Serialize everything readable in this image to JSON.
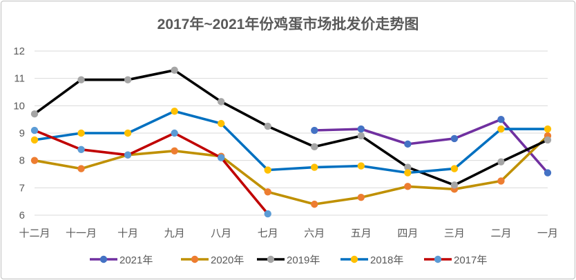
{
  "chart_data": {
    "type": "line",
    "title": "2017年~2021年份鸡蛋市场批发价走势图",
    "xlabel": "",
    "ylabel": "",
    "categories": [
      "十二月",
      "十一月",
      "十月",
      "九月",
      "八月",
      "七月",
      "六月",
      "五月",
      "四月",
      "三月",
      "二月",
      "一月"
    ],
    "ylim": [
      6,
      12
    ],
    "yticks": [
      6,
      7,
      8,
      9,
      10,
      11,
      12
    ],
    "grid": "horizontal",
    "legend": "bottom",
    "series": [
      {
        "name": "2021年",
        "line_color": "#7030a0",
        "marker_color": "#4472c4",
        "values": [
          null,
          null,
          null,
          null,
          null,
          null,
          9.1,
          9.15,
          8.6,
          8.8,
          9.5,
          7.55
        ]
      },
      {
        "name": "2020年",
        "line_color": "#bf9000",
        "marker_color": "#ed7d31",
        "values": [
          8.0,
          7.7,
          8.2,
          8.35,
          8.15,
          6.85,
          6.4,
          6.65,
          7.05,
          6.95,
          7.25,
          8.9
        ]
      },
      {
        "name": "2019年",
        "line_color": "#000000",
        "marker_color": "#a5a5a5",
        "values": [
          9.7,
          10.95,
          10.95,
          11.3,
          10.15,
          9.25,
          8.5,
          8.9,
          7.75,
          7.1,
          7.95,
          8.75
        ]
      },
      {
        "name": "2018年",
        "line_color": "#0070c0",
        "marker_color": "#ffc000",
        "values": [
          8.75,
          9.0,
          9.0,
          9.8,
          9.35,
          7.65,
          7.75,
          7.8,
          7.55,
          7.7,
          9.15,
          9.15
        ]
      },
      {
        "name": "2017年",
        "line_color": "#c00000",
        "marker_color": "#5b9bd5",
        "values": [
          9.1,
          8.4,
          8.2,
          9.0,
          8.1,
          6.05,
          null,
          null,
          null,
          null,
          null,
          null
        ]
      }
    ]
  }
}
